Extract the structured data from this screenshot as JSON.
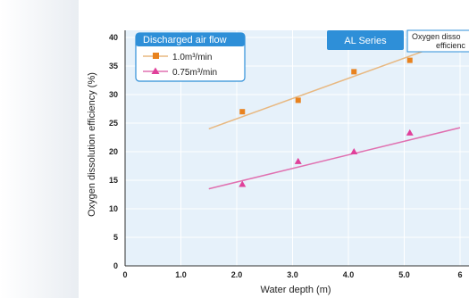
{
  "chart_data": {
    "type": "scatter",
    "title": "",
    "xlabel": "Water depth (m)",
    "ylabel": "Oxygen dissolution efficiency (%)",
    "xlim": [
      0,
      6
    ],
    "ylim": [
      0,
      40
    ],
    "x_ticks": [
      0,
      1,
      2,
      3,
      4,
      5,
      6
    ],
    "x_tick_labels": [
      "0",
      "1.0",
      "2.0",
      "3.0",
      "4.0",
      "5.0",
      "6"
    ],
    "y_ticks": [
      0,
      5,
      10,
      15,
      20,
      25,
      30,
      35,
      40
    ],
    "y_tick_labels": [
      "0",
      "5",
      "10",
      "15",
      "20",
      "25",
      "30",
      "35",
      "40"
    ],
    "grid": true,
    "legend": {
      "title": "Discharged air flow",
      "placement": "top-left"
    },
    "series_tag": "AL Series",
    "callout_lines": [
      "Oxygen disso",
      "efficienc"
    ],
    "series": [
      {
        "name": "1.0m³/min",
        "marker": "square",
        "color": "#e8821e",
        "line_color": "#e8b880",
        "points": [
          [
            2.1,
            27
          ],
          [
            3.1,
            29
          ],
          [
            4.1,
            34
          ],
          [
            5.1,
            36
          ]
        ],
        "trend": [
          [
            1.5,
            24
          ],
          [
            5.6,
            38.5
          ]
        ]
      },
      {
        "name": "0.75m³/min",
        "marker": "triangle",
        "color": "#e0409a",
        "line_color": "#e070b0",
        "points": [
          [
            2.1,
            14.3
          ],
          [
            3.1,
            18.3
          ],
          [
            4.1,
            20
          ],
          [
            5.1,
            23.3
          ]
        ],
        "trend": [
          [
            1.5,
            13.5
          ],
          [
            6,
            24.2
          ]
        ]
      }
    ]
  },
  "colors": {
    "plot_background": "#e6f1fa",
    "grid": "#ffffff",
    "legend_header": "#2e8fd8",
    "legend_border": "#2e8fd8",
    "page_fade": "#e9edf2"
  }
}
